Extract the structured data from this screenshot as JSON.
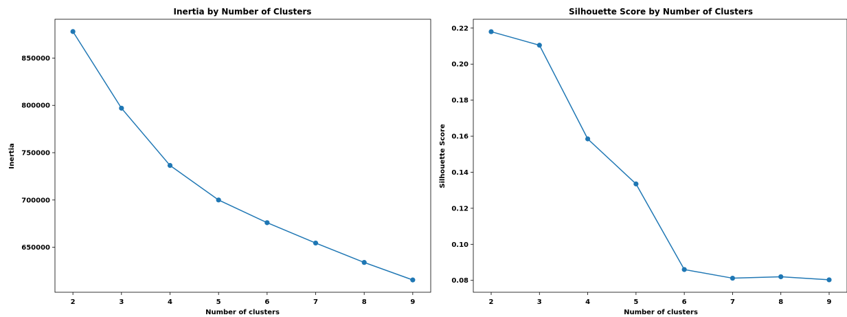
{
  "chart_data": [
    {
      "type": "line",
      "title": "Inertia by Number of Clusters",
      "xlabel": "Number of clusters",
      "ylabel": "Inertia",
      "x": [
        2,
        3,
        4,
        5,
        6,
        7,
        8,
        9
      ],
      "series": [
        {
          "values": [
            878000,
            797000,
            736500,
            700000,
            676000,
            654500,
            634000,
            615500
          ],
          "color": "#1f77b4"
        }
      ],
      "xlim": [
        1.63,
        9.37
      ],
      "ylim": [
        602500,
        891000
      ],
      "xticks": [
        2,
        3,
        4,
        5,
        6,
        7,
        8,
        9
      ],
      "yticks": [
        650000,
        700000,
        750000,
        800000,
        850000
      ],
      "grid": false,
      "marker": "circle"
    },
    {
      "type": "line",
      "title": "Silhouette Score by Number of Clusters",
      "xlabel": "Number of clusters",
      "ylabel": "Silhouette Score",
      "x": [
        2,
        3,
        4,
        5,
        6,
        7,
        8,
        9
      ],
      "series": [
        {
          "values": [
            0.218,
            0.2105,
            0.1585,
            0.1335,
            0.086,
            0.0812,
            0.082,
            0.0803
          ],
          "color": "#1f77b4"
        }
      ],
      "xlim": [
        1.63,
        9.37
      ],
      "ylim": [
        0.0734,
        0.2249
      ],
      "xticks": [
        2,
        3,
        4,
        5,
        6,
        7,
        8,
        9
      ],
      "yticks": [
        0.08,
        0.1,
        0.12,
        0.14,
        0.16,
        0.18,
        0.2,
        0.22
      ],
      "ytick_decimals": 2,
      "grid": false,
      "marker": "circle"
    }
  ]
}
